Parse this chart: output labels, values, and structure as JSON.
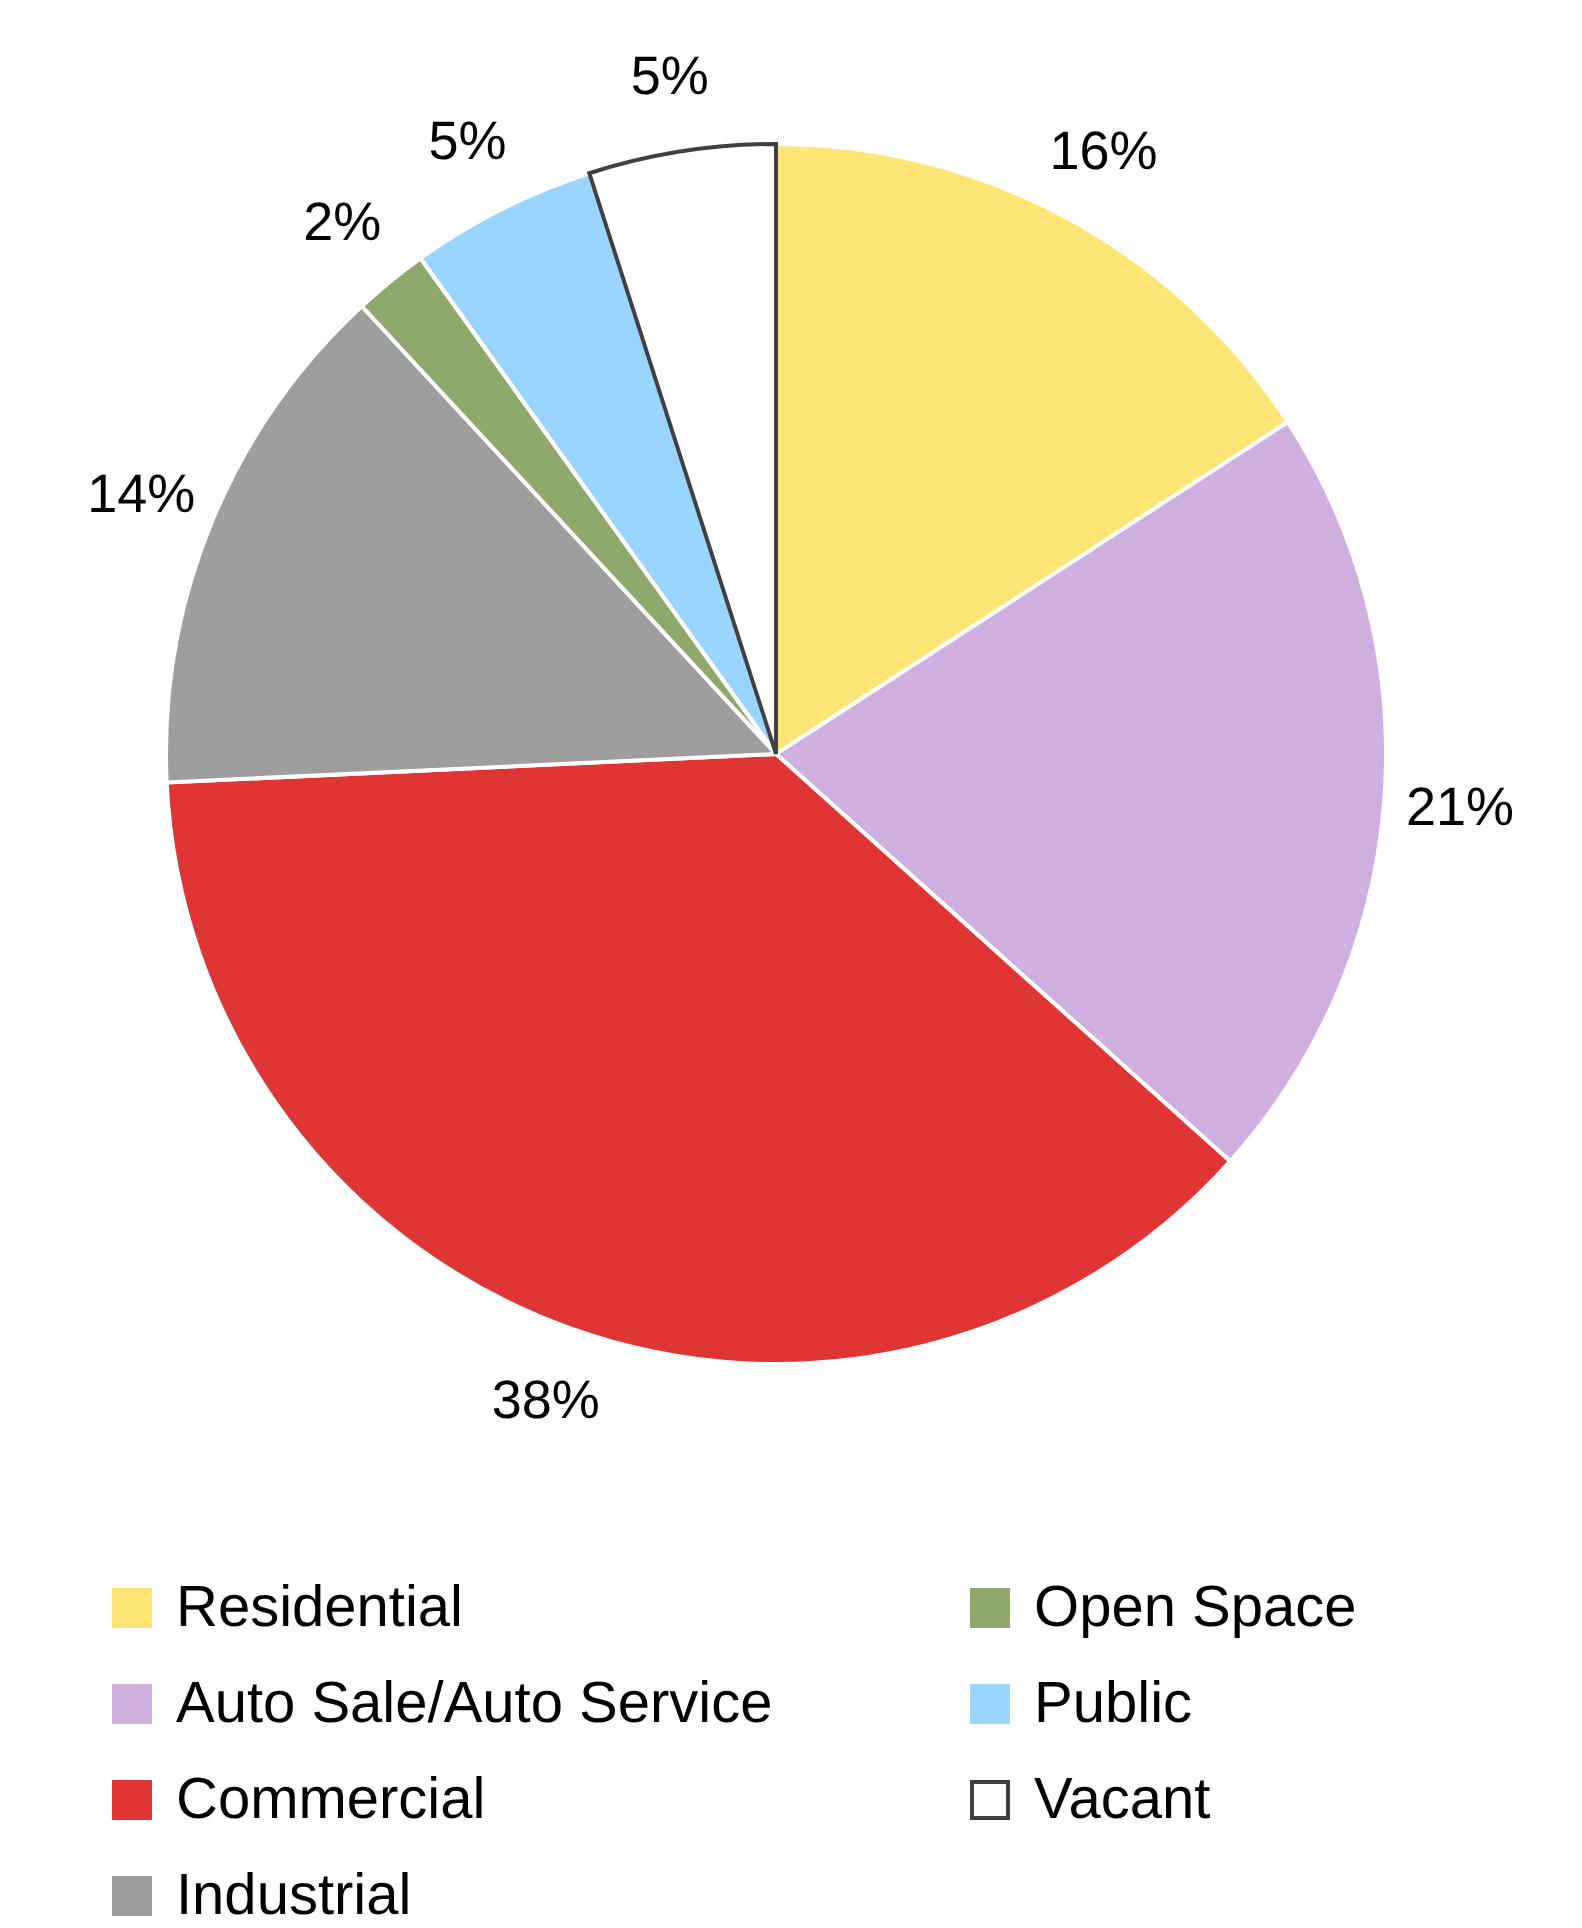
{
  "chart_data": {
    "type": "pie",
    "categories": [
      "Residential",
      "Auto Sale/Auto Service",
      "Commercial",
      "Industrial",
      "Open Space",
      "Public",
      "Vacant"
    ],
    "values": [
      16,
      21,
      38,
      14,
      2,
      5,
      5
    ],
    "colors": [
      "#ffe575",
      "#cfafdf",
      "#e03535",
      "#9e9e9e",
      "#8fa86b",
      "#9ad5ff",
      "#ffffff"
    ],
    "value_labels": [
      "16%",
      "21%",
      "38%",
      "14%",
      "2%",
      "5%",
      "5%"
    ],
    "legend": "bottom"
  }
}
